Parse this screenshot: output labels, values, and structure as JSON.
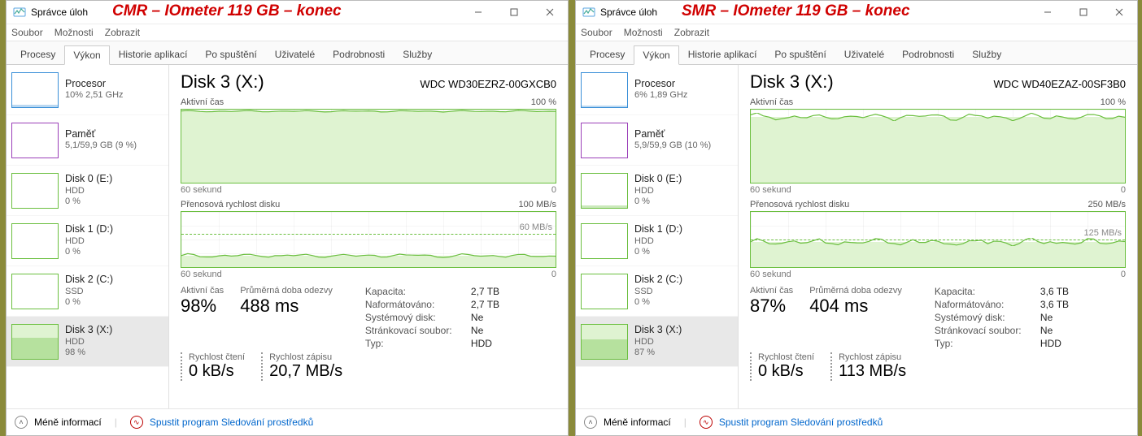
{
  "panels": [
    {
      "overlay": "CMR – IOmeter 119 GB – konec",
      "window_title": "Správce úloh",
      "menus": [
        "Soubor",
        "Možnosti",
        "Zobrazit"
      ],
      "tabs": [
        "Procesy",
        "Výkon",
        "Historie aplikací",
        "Po spuštění",
        "Uživatelé",
        "Podrobnosti",
        "Služby"
      ],
      "active_tab": 1,
      "accent": "#6BBF3F",
      "accent_light": "#DFF3D1",
      "sidebar": [
        {
          "title": "Procesor",
          "sub": "10%  2,51 GHz",
          "color": "#3A8FD8",
          "fillpct": 5
        },
        {
          "title": "Paměť",
          "sub": "5,1/59,9 GB (9 %)",
          "color": "#9B3FB8",
          "fillpct": 0
        },
        {
          "title": "Disk 0 (E:)",
          "sub1": "HDD",
          "sub2": "0 %",
          "color": "#6BBF3F",
          "fillpct": 0
        },
        {
          "title": "Disk 1 (D:)",
          "sub1": "HDD",
          "sub2": "0 %",
          "color": "#6BBF3F",
          "fillpct": 0
        },
        {
          "title": "Disk 2 (C:)",
          "sub1": "SSD",
          "sub2": "0 %",
          "color": "#6BBF3F",
          "fillpct": 0
        },
        {
          "title": "Disk 3 (X:)",
          "sub1": "HDD",
          "sub2": "98 %",
          "color": "#6BBF3F",
          "fillpct": 60,
          "selected": true
        }
      ],
      "disk_title": "Disk 3 (X:)",
      "disk_model": "WDC WD30EZRZ-00GXCB0",
      "chart1": {
        "label": "Aktivní čas",
        "max": "100 %",
        "axis_left": "60 sekund",
        "axis_right": "0",
        "level_pct": 98,
        "wave_amp": 1,
        "wave_variance": 0.3
      },
      "chart2": {
        "label": "Přenosová rychlost disku",
        "max": "100 MB/s",
        "axis_left": "60 sekund",
        "axis_right": "0",
        "mid": "60 MB/s",
        "mid_pct": 60,
        "level_pct": 21,
        "wave_amp": 2,
        "wave_variance": 1.5
      },
      "stats": {
        "active_label": "Aktivní čas",
        "active_val": "98%",
        "resp_label": "Průměrná doba odezvy",
        "resp_val": "488 ms",
        "read_label": "Rychlost čtení",
        "read_val": "0 kB/s",
        "write_label": "Rychlost zápisu",
        "write_val": "20,7 MB/s"
      },
      "kv": {
        "Kapacita:": "2,7 TB",
        "Naformátováno:": "2,7 TB",
        "Systémový disk:": "Ne",
        "Stránkovací soubor:": "Ne",
        "Typ:": "HDD"
      },
      "footer": {
        "less": "Méně informací",
        "rm": "Spustit program Sledování prostředků"
      }
    },
    {
      "overlay": "SMR – IOmeter 119 GB – konec",
      "window_title": "Správce úloh",
      "menus": [
        "Soubor",
        "Možnosti",
        "Zobrazit"
      ],
      "tabs": [
        "Procesy",
        "Výkon",
        "Historie aplikací",
        "Po spuštění",
        "Uživatelé",
        "Podrobnosti",
        "Služby"
      ],
      "active_tab": 1,
      "accent": "#6BBF3F",
      "accent_light": "#DFF3D1",
      "sidebar": [
        {
          "title": "Procesor",
          "sub": "6%  1,89 GHz",
          "color": "#3A8FD8",
          "fillpct": 4
        },
        {
          "title": "Paměť",
          "sub": "5,9/59,9 GB (10 %)",
          "color": "#9B3FB8",
          "fillpct": 0
        },
        {
          "title": "Disk 0 (E:)",
          "sub1": "HDD",
          "sub2": "0 %",
          "color": "#6BBF3F",
          "fillpct": 6
        },
        {
          "title": "Disk 1 (D:)",
          "sub1": "HDD",
          "sub2": "0 %",
          "color": "#6BBF3F",
          "fillpct": 0
        },
        {
          "title": "Disk 2 (C:)",
          "sub1": "SSD",
          "sub2": "0 %",
          "color": "#6BBF3F",
          "fillpct": 0
        },
        {
          "title": "Disk 3 (X:)",
          "sub1": "HDD",
          "sub2": "87 %",
          "color": "#6BBF3F",
          "fillpct": 55,
          "selected": true
        }
      ],
      "disk_title": "Disk 3 (X:)",
      "disk_model": "WDC WD40EZAZ-00SF3B0",
      "chart1": {
        "label": "Aktivní čas",
        "max": "100 %",
        "axis_left": "60 sekund",
        "axis_right": "0",
        "level_pct": 90,
        "wave_amp": 4,
        "wave_variance": 2.5
      },
      "chart2": {
        "label": "Přenosová rychlost disku",
        "max": "250 MB/s",
        "axis_left": "60 sekund",
        "axis_right": "0",
        "mid": "125 MB/s",
        "mid_pct": 50,
        "level_pct": 45,
        "wave_amp": 4,
        "wave_variance": 4
      },
      "stats": {
        "active_label": "Aktivní čas",
        "active_val": "87%",
        "resp_label": "Průměrná doba odezvy",
        "resp_val": "404 ms",
        "read_label": "Rychlost čtení",
        "read_val": "0 kB/s",
        "write_label": "Rychlost zápisu",
        "write_val": "113 MB/s"
      },
      "kv": {
        "Kapacita:": "3,6 TB",
        "Naformátováno:": "3,6 TB",
        "Systémový disk:": "Ne",
        "Stránkovací soubor:": "Ne",
        "Typ:": "HDD"
      },
      "footer": {
        "less": "Méně informací",
        "rm": "Spustit program Sledování prostředků"
      }
    }
  ]
}
